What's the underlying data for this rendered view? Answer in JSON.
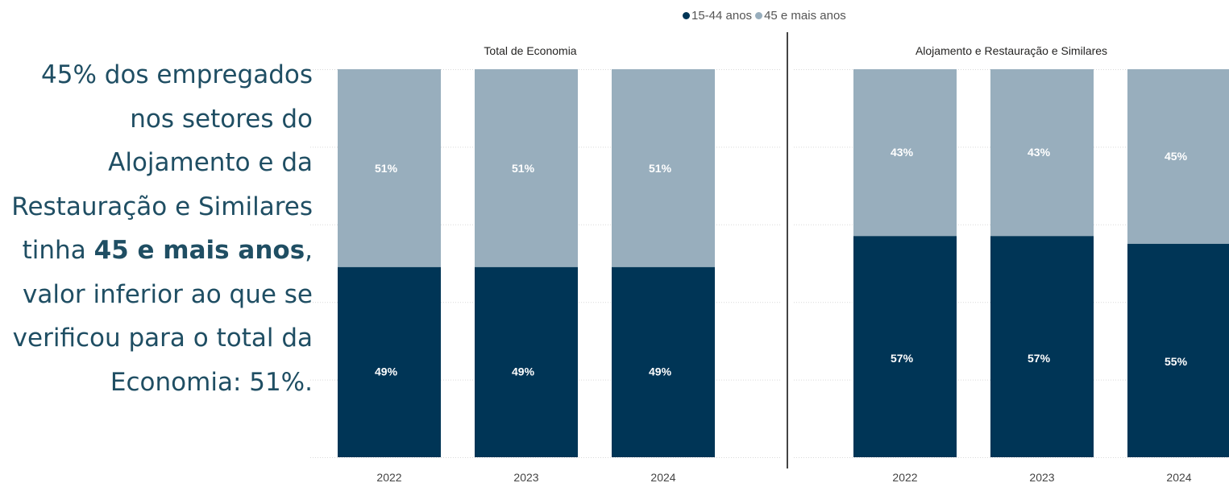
{
  "narrative": {
    "part1": "45% dos empregados nos setores do Alojamento e da Restauração e Similares tinha ",
    "bold": "45 e mais anos",
    "part2": ", valor inferior ao que se verificou para o total da Economia: 51%."
  },
  "legend": {
    "items": [
      {
        "label": "15-44 anos",
        "color": "#003556"
      },
      {
        "label": "45 e mais anos",
        "color": "#98aebd"
      }
    ]
  },
  "colors": {
    "young": "#003556",
    "old": "#98aebd",
    "label": "#ffffff"
  },
  "chart_data": [
    {
      "type": "bar",
      "stacked": "percent",
      "title": "Total de Economia",
      "categories": [
        "2022",
        "2023",
        "2024"
      ],
      "series": [
        {
          "name": "15-44 anos",
          "values": [
            49,
            49,
            49
          ]
        },
        {
          "name": "45 e mais anos",
          "values": [
            51,
            51,
            51
          ]
        }
      ],
      "value_labels": {
        "15-44 anos": [
          "49%",
          "49%",
          "49%"
        ],
        "45 e mais anos": [
          "51%",
          "51%",
          "51%"
        ]
      },
      "ylim": [
        0,
        100
      ],
      "grid": true
    },
    {
      "type": "bar",
      "stacked": "percent",
      "title": "Alojamento e Restauração e Similares",
      "categories": [
        "2022",
        "2023",
        "2024"
      ],
      "series": [
        {
          "name": "15-44 anos",
          "values": [
            57,
            57,
            55
          ]
        },
        {
          "name": "45 e mais anos",
          "values": [
            43,
            43,
            45
          ]
        }
      ],
      "value_labels": {
        "15-44 anos": [
          "57%",
          "57%",
          "55%"
        ],
        "45 e mais anos": [
          "43%",
          "43%",
          "45%"
        ]
      },
      "ylim": [
        0,
        100
      ],
      "grid": true
    }
  ]
}
